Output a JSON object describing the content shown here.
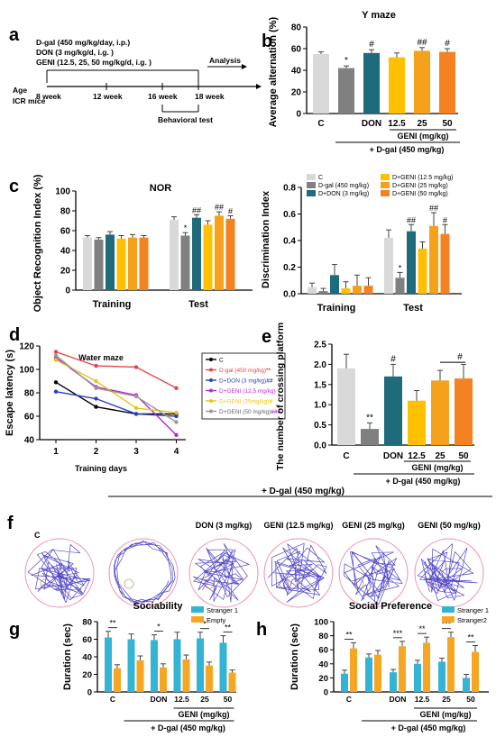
{
  "colors": {
    "c": "#d9d9d9",
    "dgal": "#808080",
    "don": "#1e6b7b",
    "g125": "#ffc000",
    "g25": "#f5a11b",
    "g50": "#f58220",
    "stranger1": "#33b4d4",
    "empty": "#f6a623",
    "track": "#5046c8",
    "arena": "#f08cb4"
  },
  "panels": {
    "a": {
      "letter": "a",
      "doses": [
        "D-gal (450 mg/kg/day, i.p.)",
        "DON (3 mg/kg/d, i.g. )",
        "GENI (12.5, 25, 50 mg/kg/d, i.g. )"
      ],
      "analysis": "Analysis",
      "age": "Age",
      "mice": "ICR mice",
      "weeks": [
        "8 week",
        "12 week",
        "16 week",
        "18 week"
      ],
      "behavior": "Behavioral test"
    },
    "b": {
      "letter": "b"
    },
    "c": {
      "letter": "c"
    },
    "d": {
      "letter": "d"
    },
    "e": {
      "letter": "e"
    },
    "f": {
      "letter": "f",
      "header": "+ D-gal (450 mg/kg)",
      "labels": [
        "C",
        "",
        "DON (3 mg/kg)",
        "GENI (12.5 mg/kg)",
        "GENI (25 mg/kg)",
        "GENI (50 mg/kg)"
      ]
    },
    "g": {
      "letter": "g"
    },
    "h": {
      "letter": "h"
    }
  },
  "chart_data": [
    {
      "id": "b",
      "type": "bar",
      "title": "Y maze",
      "ylabel": "Average alternation (%)",
      "ylim": [
        0,
        80
      ],
      "yticks": [
        0,
        20,
        40,
        60,
        80
      ],
      "categories": [
        "C",
        "",
        "DON",
        "12.5",
        "25",
        "50"
      ],
      "values": [
        55,
        42,
        56,
        52,
        58,
        57
      ],
      "errors": [
        2,
        2,
        3,
        4,
        3,
        3
      ],
      "sig": [
        "",
        "*",
        "#",
        "",
        "##",
        "#"
      ],
      "group_label": "GENI (mg/kg)",
      "group_note": "+ D-gal (450 mg/kg)"
    },
    {
      "id": "c1",
      "type": "bar",
      "title": "NOR",
      "ylabel": "Object Recognition Index (%)",
      "ylim": [
        0,
        100
      ],
      "yticks": [
        0,
        20,
        40,
        60,
        80,
        100
      ],
      "categories": [
        "Training",
        "Test"
      ],
      "series": [
        {
          "values": [
            53,
            71
          ],
          "errors": [
            2,
            3
          ]
        },
        {
          "values": [
            51,
            55
          ],
          "errors": [
            2,
            3
          ]
        },
        {
          "values": [
            56,
            73
          ],
          "errors": [
            3,
            3
          ]
        },
        {
          "values": [
            52,
            66
          ],
          "errors": [
            3,
            4
          ]
        },
        {
          "values": [
            53,
            75
          ],
          "errors": [
            3,
            4
          ]
        },
        {
          "values": [
            53,
            72
          ],
          "errors": [
            2,
            3
          ]
        }
      ],
      "sig": [
        [
          "",
          ""
        ],
        [
          "",
          "*"
        ],
        [
          "",
          "##"
        ],
        [
          "",
          ""
        ],
        [
          "",
          "##"
        ],
        [
          "",
          "#"
        ]
      ]
    },
    {
      "id": "c2",
      "type": "bar",
      "ylabel": "Discrimination Index",
      "ylim": [
        0,
        0.8
      ],
      "yticks": [
        "0.0",
        "0.2",
        "0.4",
        "0.6",
        "0.8"
      ],
      "categories": [
        "Training",
        "Test"
      ],
      "legend": [
        "C",
        "D-gal (450 mg/kg)",
        "D+DON (3 mg/kg)",
        "D+GENI (12.5 mg/kg)",
        "D+GENI (25 mg/kg)",
        "D+GENI (50 mg/kg)"
      ],
      "series": [
        {
          "values": [
            0.05,
            0.42
          ],
          "errors": [
            0.03,
            0.06
          ]
        },
        {
          "values": [
            0.02,
            0.12
          ],
          "errors": [
            0.02,
            0.04
          ]
        },
        {
          "values": [
            0.14,
            0.47
          ],
          "errors": [
            0.08,
            0.05
          ]
        },
        {
          "values": [
            0.04,
            0.34
          ],
          "errors": [
            0.05,
            0.05
          ]
        },
        {
          "values": [
            0.06,
            0.51
          ],
          "errors": [
            0.08,
            0.1
          ]
        },
        {
          "values": [
            0.06,
            0.45
          ],
          "errors": [
            0.06,
            0.07
          ]
        }
      ],
      "sig": [
        [
          "",
          ""
        ],
        [
          "",
          "*"
        ],
        [
          "",
          "##"
        ],
        [
          "",
          ""
        ],
        [
          "",
          "##"
        ],
        [
          "",
          "#"
        ]
      ]
    },
    {
      "id": "d",
      "type": "line",
      "title": "Water maze",
      "ylabel": "Escape latency (s)",
      "xlabel": "Training days",
      "x": [
        1,
        2,
        3,
        4
      ],
      "xticks": [
        "1",
        "2",
        "3",
        "4"
      ],
      "ylim": [
        40,
        120
      ],
      "yticks": [
        40,
        60,
        80,
        100,
        120
      ],
      "series": [
        {
          "name": "C",
          "values": [
            89,
            68,
            62,
            62
          ],
          "color": "#000000"
        },
        {
          "name": "D-gal (450 mg/kg)",
          "sig": "**",
          "values": [
            115,
            103,
            102,
            84
          ],
          "color": "#e8434a"
        },
        {
          "name": "D+DON (3 mg/kg)",
          "sig": "##",
          "values": [
            81,
            75,
            62,
            60
          ],
          "color": "#2e3fc4"
        },
        {
          "name": "D+GENI (12.5 mg/kg)",
          "values": [
            110,
            85,
            78,
            44
          ],
          "color": "#b62ad1"
        },
        {
          "name": "D+GENI (25mg/kg)",
          "sig": "#",
          "values": [
            108,
            90,
            67,
            63
          ],
          "color": "#e6c51b"
        },
        {
          "name": "D+GENI (50 mg/kg)",
          "sig": "###",
          "values": [
            112,
            84,
            77,
            55
          ],
          "color": "#999999"
        }
      ]
    },
    {
      "id": "e",
      "type": "bar",
      "ylabel": "The number of crossing platform",
      "ylim": [
        0,
        2.5
      ],
      "yticks": [
        "0.0",
        "0.5",
        "1.0",
        "1.5",
        "2.0",
        "2.5"
      ],
      "categories": [
        "C",
        "",
        "DON",
        "12.5",
        "25",
        "50"
      ],
      "values": [
        1.9,
        0.4,
        1.7,
        1.1,
        1.6,
        1.65
      ],
      "errors": [
        0.35,
        0.15,
        0.3,
        0.25,
        0.25,
        0.35
      ],
      "sig": [
        "",
        "**",
        "#",
        "",
        "",
        ""
      ],
      "bracket_sig": "#",
      "group_label": "GENI (mg/kg)",
      "group_note": "+ D-gal (450 mg/kg)"
    },
    {
      "id": "g",
      "type": "bar",
      "title": "Sociability",
      "ylabel": "Duration (sec)",
      "ylim": [
        0,
        80
      ],
      "yticks": [
        0,
        20,
        40,
        60,
        80
      ],
      "categories": [
        "C",
        "",
        "DON",
        "12.5",
        "25",
        "50"
      ],
      "series": [
        {
          "name": "Stranger 1",
          "values": [
            62,
            60,
            59,
            60,
            61,
            56
          ],
          "errors": [
            7,
            6,
            6,
            8,
            7,
            8
          ]
        },
        {
          "name": "Empty",
          "values": [
            27,
            36,
            28,
            37,
            30,
            22
          ],
          "errors": [
            4,
            5,
            4,
            5,
            4,
            3
          ]
        }
      ],
      "sig": [
        "**",
        "",
        "*",
        "",
        "*",
        "**"
      ],
      "group_label": "GENI (mg/kg)",
      "group_note": "+ D-gal (450 mg/kg)"
    },
    {
      "id": "h",
      "type": "bar",
      "title": "Social Preference",
      "ylabel": "Duration (sec)",
      "ylim": [
        0,
        100
      ],
      "yticks": [
        0,
        20,
        40,
        60,
        80,
        100
      ],
      "categories": [
        "C",
        "",
        "DON",
        "12.5",
        "25",
        "50"
      ],
      "series": [
        {
          "name": "Stranger 1",
          "values": [
            26,
            49,
            28,
            40,
            43,
            20
          ],
          "errors": [
            5,
            5,
            4,
            5,
            5,
            5
          ]
        },
        {
          "name": "Stranger2",
          "values": [
            62,
            53,
            65,
            70,
            78,
            57
          ],
          "errors": [
            8,
            6,
            7,
            8,
            7,
            9
          ]
        }
      ],
      "sig": [
        "**",
        "",
        "***",
        "**",
        "***",
        "**"
      ],
      "group_label": "GENI (mg/kg)",
      "group_note": "+ D-gal (450 mg/kg)"
    }
  ]
}
